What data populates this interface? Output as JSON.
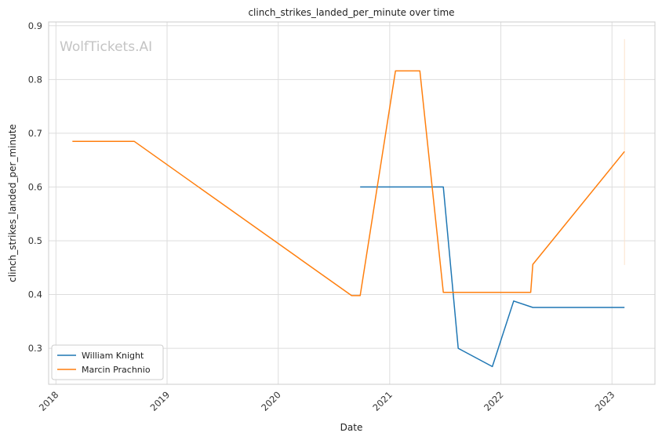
{
  "chart_data": {
    "type": "line",
    "title": "clinch_strikes_landed_per_minute over time",
    "xlabel": "Date",
    "ylabel": "clinch_strikes_landed_per_minute",
    "watermark": "WolfTickets.AI",
    "xlim": [
      "2017-12-08",
      "2023-05-22"
    ],
    "ylim": [
      0.233,
      0.907
    ],
    "x_ticks": [
      "2018",
      "2019",
      "2020",
      "2021",
      "2022",
      "2023"
    ],
    "y_ticks": [
      0.3,
      0.4,
      0.5,
      0.6,
      0.7,
      0.8,
      0.9
    ],
    "grid": true,
    "legend_position": "lower-left",
    "series": [
      {
        "name": "William Knight",
        "color": "#1f77b4",
        "points": [
          {
            "x": "2020-09-26",
            "y": 0.6
          },
          {
            "x": "2021-06-26",
            "y": 0.6
          },
          {
            "x": "2021-08-14",
            "y": 0.3
          },
          {
            "x": "2021-12-04",
            "y": 0.266
          },
          {
            "x": "2022-02-12",
            "y": 0.388
          },
          {
            "x": "2022-04-16",
            "y": 0.376
          },
          {
            "x": "2023-02-11",
            "y": 0.376
          }
        ]
      },
      {
        "name": "Marcin Prachnio",
        "color": "#ff7f0e",
        "points": [
          {
            "x": "2018-02-24",
            "y": 0.685
          },
          {
            "x": "2018-09-15",
            "y": 0.685
          },
          {
            "x": "2020-08-29",
            "y": 0.398
          },
          {
            "x": "2020-09-26",
            "y": 0.398
          },
          {
            "x": "2021-01-20",
            "y": 0.816
          },
          {
            "x": "2021-04-10",
            "y": 0.816
          },
          {
            "x": "2021-06-26",
            "y": 0.404
          },
          {
            "x": "2022-04-09",
            "y": 0.404
          },
          {
            "x": "2022-04-16",
            "y": 0.456
          },
          {
            "x": "2023-02-11",
            "y": 0.666
          }
        ]
      }
    ],
    "vertical_line": {
      "x": "2023-02-11",
      "y_range": [
        0.455,
        0.875
      ],
      "color": "#fbe3cc"
    }
  }
}
